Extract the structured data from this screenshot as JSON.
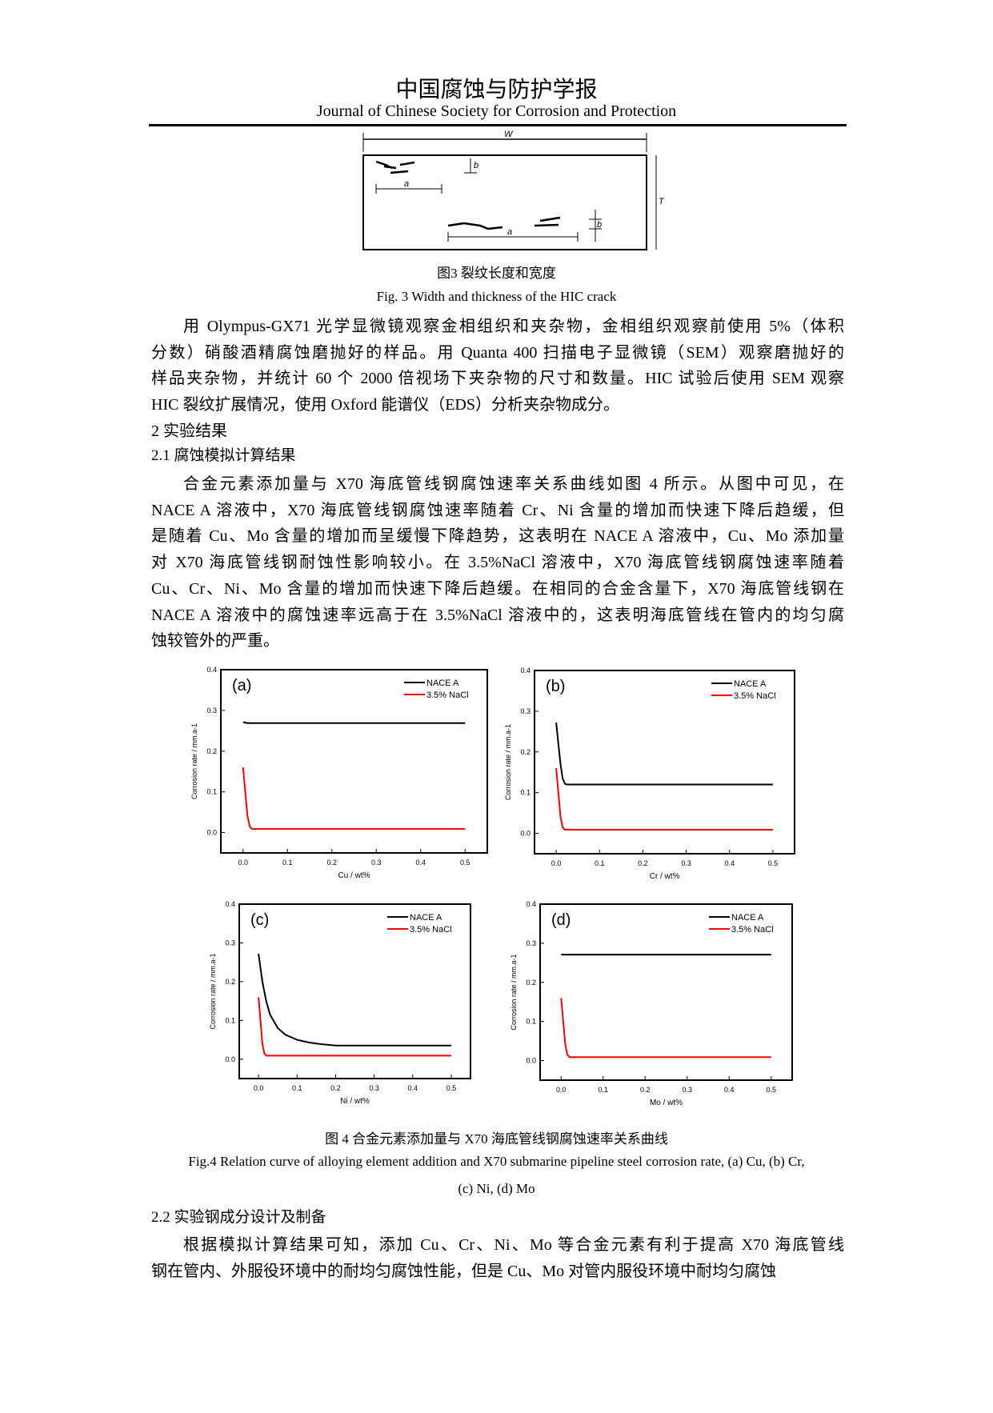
{
  "header": {
    "title_cn": "中国腐蚀与防护学报",
    "title_en": "Journal of Chinese Society for Corrosion and Protection"
  },
  "fig3": {
    "labels": {
      "W": "W",
      "T": "T",
      "a": "a",
      "b": "b"
    },
    "caption_cn": "图3  裂纹长度和宽度",
    "caption_en": "Fig. 3 Width and thickness of the HIC crack"
  },
  "para1": [
    "用 Olympus-GX71 光学显微镜观察金相组织和夹杂物，金相组织观察前使用 5%（体积",
    "分数）硝酸酒精腐蚀磨抛好的样品。用 Quanta 400 扫描电子显微镜（SEM）观察磨抛好的",
    "样品夹杂物，并统计 60 个 2000 倍视场下夹杂物的尺寸和数量。HIC 试验后使用 SEM 观察",
    "HIC 裂纹扩展情况，使用 Oxford 能谱仪（EDS）分析夹杂物成分。"
  ],
  "section2": "2  实验结果",
  "section21": "2.1  腐蚀模拟计算结果",
  "para2": [
    "合金元素添加量与 X70 海底管线钢腐蚀速率关系曲线如图 4 所示。从图中可见，在",
    "NACE A 溶液中，X70 海底管线钢腐蚀速率随着 Cr、Ni 含量的增加而快速下降后趋缓，但",
    "是随着 Cu、Mo 含量的增加而呈缓慢下降趋势，这表明在 NACE A 溶液中，Cu、Mo 添加量",
    "对 X70 海底管线钢耐蚀性影响较小。在 3.5%NaCl 溶液中，X70 海底管线钢腐蚀速率随着",
    "Cu、Cr、Ni、Mo 含量的增加而快速下降后趋缓。在相同的合金含量下，X70 海底管线钢在",
    "NACE A 溶液中的腐蚀速率远高于在 3.5%NaCl 溶液中的，这表明海底管线在管内的均匀腐",
    "蚀较管外的严重。"
  ],
  "fig4": {
    "caption_cn": "图 4  合金元素添加量与 X70 海底管线钢腐蚀速率关系曲线",
    "caption_en1": "Fig.4 Relation curve of alloying element addition and X70 submarine pipeline steel corrosion rate, (a) Cu, (b) Cr,",
    "caption_en2": "(c) Ni, (d) Mo"
  },
  "section22": "2.2  实验钢成分设计及制备",
  "para3": [
    "根据模拟计算结果可知，添加 Cu、Cr、Ni、Mo 等合金元素有利于提高 X70 海底管线",
    "钢在管内、外服役环境中的耐均匀腐蚀性能，但是 Cu、Mo 对管内服役环境中耐均匀腐蚀"
  ],
  "colors": {
    "nace": "#000000",
    "nacl": "#ff0000"
  },
  "chart_data": [
    {
      "type": "line",
      "panel": "(a)",
      "xlabel": "Cu / wt%",
      "ylabel": "Corrosion rate / mm.a-1",
      "xlim": [
        -0.05,
        0.55
      ],
      "ylim": [
        -0.05,
        0.4
      ],
      "xticks": [
        "0.0",
        "0.1",
        "0.2",
        "0.3",
        "0.4",
        "0.5"
      ],
      "yticks": [
        "0.0",
        "0.1",
        "0.2",
        "0.3",
        "0.4"
      ],
      "legend": "top-right",
      "series": [
        {
          "name": "NACE A",
          "x": [
            0,
            0.01,
            0.5
          ],
          "y": [
            0.271,
            0.269,
            0.269
          ]
        },
        {
          "name": "3.5% NaCl",
          "x": [
            0,
            0.005,
            0.01,
            0.015,
            0.02,
            0.5
          ],
          "y": [
            0.16,
            0.1,
            0.04,
            0.015,
            0.009,
            0.009
          ]
        }
      ]
    },
    {
      "type": "line",
      "panel": "(b)",
      "xlabel": "Cr / wt%",
      "ylabel": "Corrosion rate / mm.a-1",
      "xlim": [
        -0.05,
        0.55
      ],
      "ylim": [
        -0.05,
        0.4
      ],
      "xticks": [
        "0.0",
        "0.1",
        "0.2",
        "0.3",
        "0.4",
        "0.5"
      ],
      "yticks": [
        "0.0",
        "0.1",
        "0.2",
        "0.3",
        "0.4"
      ],
      "legend": "top-right",
      "series": [
        {
          "name": "NACE A",
          "x": [
            0,
            0.005,
            0.01,
            0.015,
            0.02,
            0.025,
            0.5
          ],
          "y": [
            0.272,
            0.22,
            0.17,
            0.135,
            0.122,
            0.12,
            0.12
          ]
        },
        {
          "name": "3.5% NaCl",
          "x": [
            0,
            0.005,
            0.01,
            0.015,
            0.02,
            0.5
          ],
          "y": [
            0.16,
            0.1,
            0.04,
            0.015,
            0.009,
            0.009
          ]
        }
      ]
    },
    {
      "type": "line",
      "panel": "(c)",
      "xlabel": "Ni / wt%",
      "ylabel": "Corrosion rate / mm.a-1",
      "xlim": [
        -0.05,
        0.55
      ],
      "ylim": [
        -0.05,
        0.4
      ],
      "xticks": [
        "0.0",
        "0.1",
        "0.2",
        "0.3",
        "0.4",
        "0.5"
      ],
      "yticks": [
        "0.0",
        "0.1",
        "0.2",
        "0.3",
        "0.4"
      ],
      "legend": "top-right",
      "series": [
        {
          "name": "NACE A",
          "x": [
            0,
            0.01,
            0.02,
            0.03,
            0.05,
            0.07,
            0.1,
            0.13,
            0.16,
            0.2,
            0.5
          ],
          "y": [
            0.272,
            0.2,
            0.15,
            0.115,
            0.08,
            0.063,
            0.05,
            0.043,
            0.039,
            0.035,
            0.035
          ]
        },
        {
          "name": "3.5% NaCl",
          "x": [
            0,
            0.005,
            0.01,
            0.015,
            0.02,
            0.5
          ],
          "y": [
            0.16,
            0.1,
            0.04,
            0.015,
            0.009,
            0.009
          ]
        }
      ]
    },
    {
      "type": "line",
      "panel": "(d)",
      "xlabel": "Mo / wt%",
      "ylabel": "Corrosion rate / mm.a-1",
      "xlim": [
        -0.05,
        0.55
      ],
      "ylim": [
        -0.05,
        0.4
      ],
      "xticks": [
        "0.0",
        "0.1",
        "0.2",
        "0.3",
        "0.4",
        "0.5"
      ],
      "yticks": [
        "0.0",
        "0.1",
        "0.2",
        "0.3",
        "0.4"
      ],
      "legend": "top-right",
      "series": [
        {
          "name": "NACE A",
          "x": [
            0,
            0.5
          ],
          "y": [
            0.271,
            0.271
          ]
        },
        {
          "name": "3.5% NaCl",
          "x": [
            0,
            0.005,
            0.01,
            0.015,
            0.02,
            0.5
          ],
          "y": [
            0.16,
            0.1,
            0.04,
            0.015,
            0.009,
            0.009
          ]
        }
      ]
    }
  ]
}
